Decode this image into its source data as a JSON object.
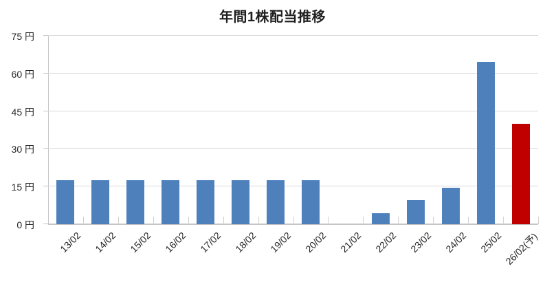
{
  "chart_title": "年間1株配当推移",
  "chart_data": {
    "type": "bar",
    "title": "年間1株配当推移",
    "categories": [
      "13/02",
      "14/02",
      "15/02",
      "16/02",
      "17/02",
      "18/02",
      "19/02",
      "20/02",
      "21/02",
      "22/02",
      "23/02",
      "24/02",
      "25/02",
      "26/02(予)"
    ],
    "values": [
      17.5,
      17.5,
      17.5,
      17.5,
      17.5,
      17.5,
      17.5,
      17.5,
      0,
      4.5,
      9.5,
      14.5,
      64.5,
      40
    ],
    "unit": "円",
    "xlabel": "",
    "ylabel": "",
    "ylim": [
      0,
      75
    ],
    "ytick_step": 15,
    "ytick_labels": [
      "0 円",
      "15 円",
      "30 円",
      "45 円",
      "60 円",
      "75 円"
    ],
    "grid": true,
    "legend": "none",
    "forecast_index": 13,
    "colors": {
      "bar_default": "#4E80BC",
      "bar_forecast": "#C00000",
      "gridline": "#D9D9D9",
      "axis_line": "#C6C6C6",
      "text": "#262626",
      "background": "#FFFFFF"
    }
  }
}
